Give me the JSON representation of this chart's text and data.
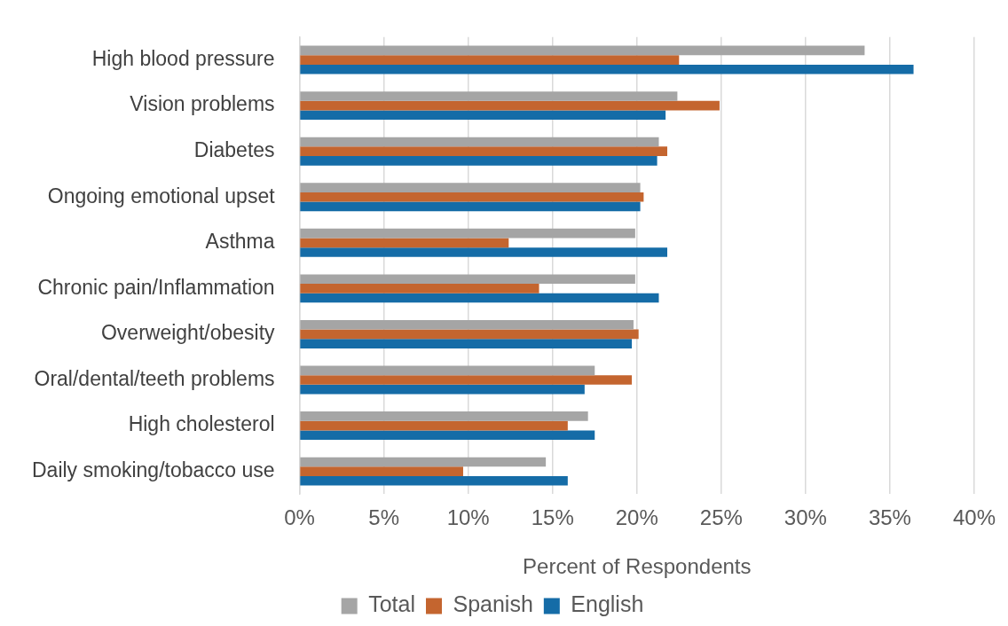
{
  "chart_data": {
    "type": "bar",
    "orientation": "horizontal",
    "xlabel": "Percent of Respondents",
    "categories": [
      "High blood pressure",
      "Vision problems",
      "Diabetes",
      "Ongoing emotional upset",
      "Asthma",
      "Chronic pain/Inflammation",
      "Overweight/obesity",
      "Oral/dental/teeth problems",
      "High cholesterol",
      "Daily smoking/tobacco use"
    ],
    "series": [
      {
        "name": "Total",
        "color": "#a5a5a5",
        "values": [
          33.5,
          22.4,
          21.3,
          20.2,
          19.9,
          19.9,
          19.8,
          17.5,
          17.1,
          14.6
        ]
      },
      {
        "name": "Spanish",
        "color": "#c4652f",
        "values": [
          22.5,
          24.9,
          21.8,
          20.4,
          12.4,
          14.2,
          20.1,
          19.7,
          15.9,
          9.7
        ]
      },
      {
        "name": "English",
        "color": "#156ca7",
        "values": [
          36.4,
          21.7,
          21.2,
          20.2,
          21.8,
          21.3,
          19.7,
          16.9,
          17.5,
          15.9
        ]
      }
    ],
    "xlim": [
      0,
      40
    ],
    "xticks": [
      {
        "value": 0,
        "label": "0%"
      },
      {
        "value": 5,
        "label": "5%"
      },
      {
        "value": 10,
        "label": "10%"
      },
      {
        "value": 15,
        "label": "15%"
      },
      {
        "value": 20,
        "label": "20%"
      },
      {
        "value": 25,
        "label": "25%"
      },
      {
        "value": 30,
        "label": "30%"
      },
      {
        "value": 35,
        "label": "35%"
      },
      {
        "value": 40,
        "label": "40%"
      }
    ],
    "grid": "x",
    "legend": "bottom"
  }
}
